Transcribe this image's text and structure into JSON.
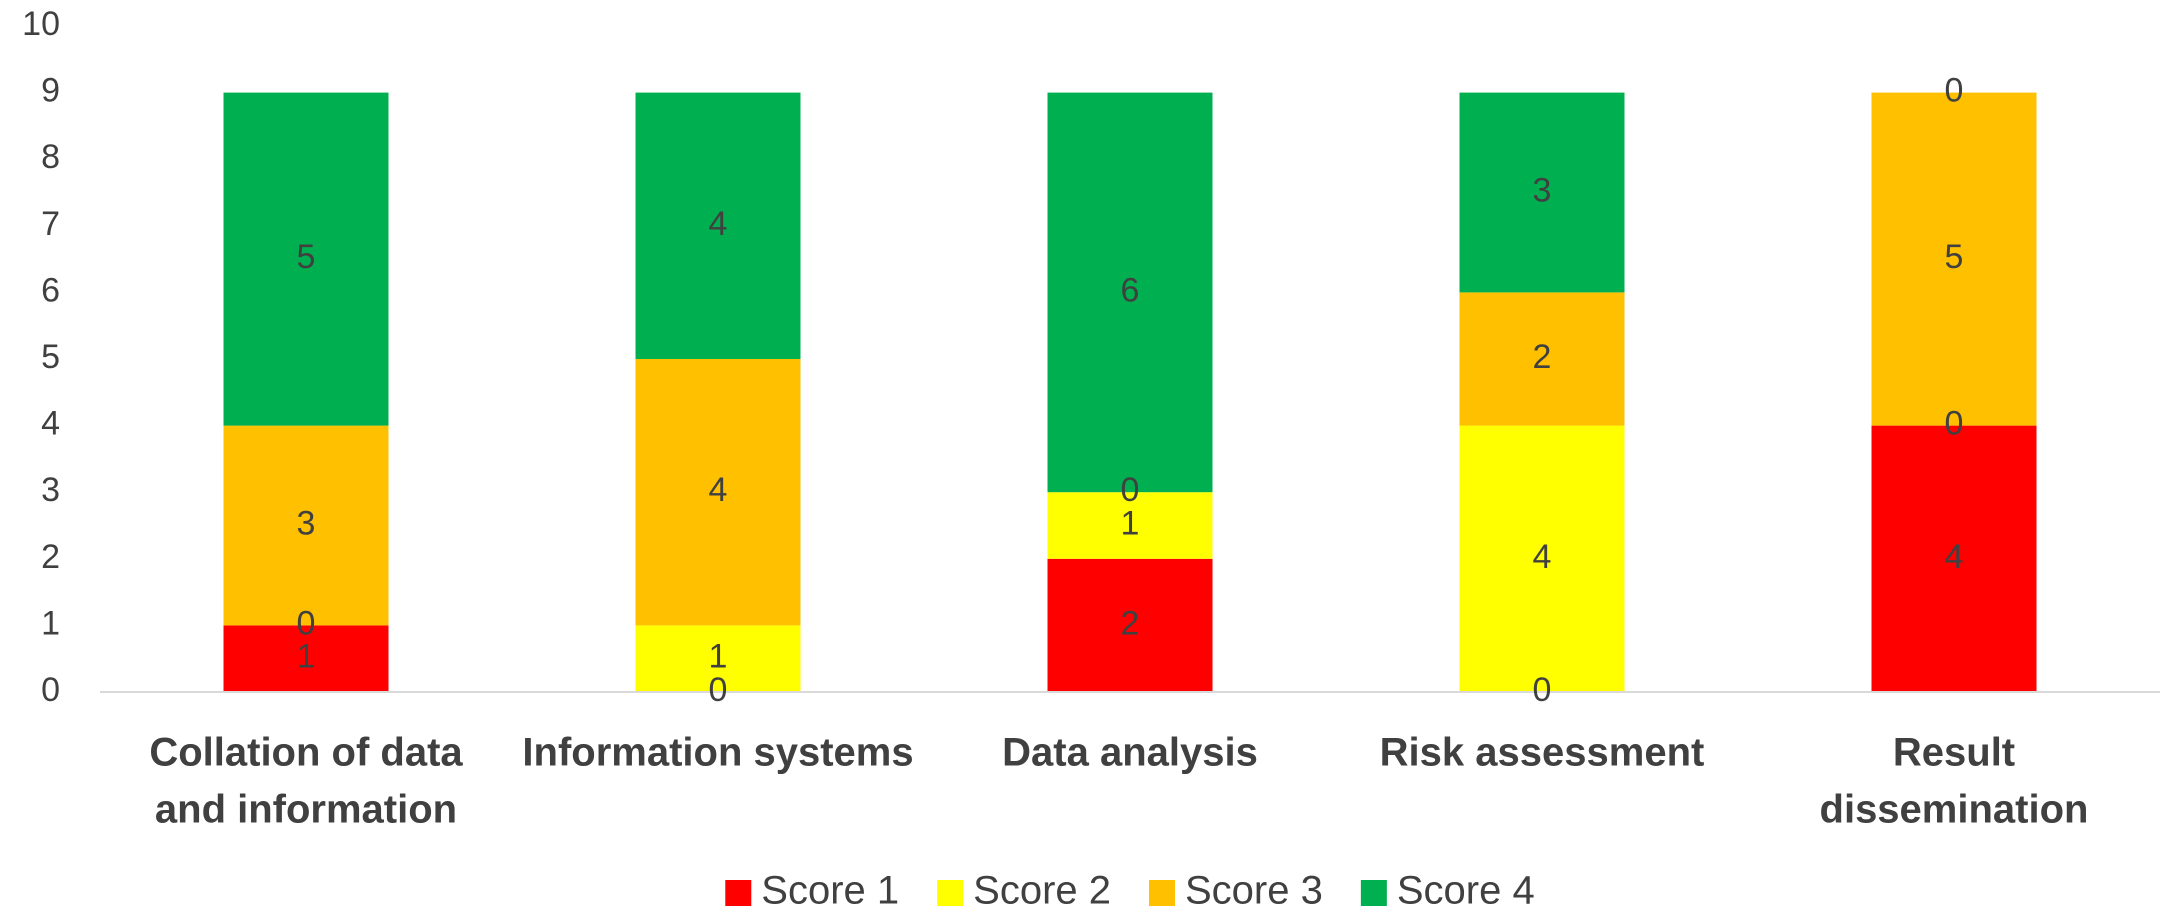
{
  "chart_data": {
    "type": "bar",
    "stacked": true,
    "categories": [
      [
        "Collation of data",
        "and information"
      ],
      [
        "Information systems"
      ],
      [
        "Data analysis"
      ],
      [
        "Risk assessment"
      ],
      [
        "Result",
        "dissemination"
      ]
    ],
    "series": [
      {
        "name": "Score 1",
        "color": "#FF0000",
        "values": [
          1,
          0,
          2,
          0,
          4
        ]
      },
      {
        "name": "Score 2",
        "color": "#FFFF00",
        "values": [
          0,
          1,
          1,
          4,
          0
        ]
      },
      {
        "name": "Score 3",
        "color": "#FFC000",
        "values": [
          3,
          4,
          0,
          2,
          5
        ]
      },
      {
        "name": "Score 4",
        "color": "#00B050",
        "values": [
          5,
          4,
          6,
          3,
          0
        ]
      }
    ],
    "ylim": [
      0,
      10
    ],
    "yticks": [
      0,
      1,
      2,
      3,
      4,
      5,
      6,
      7,
      8,
      9,
      10
    ],
    "grid": false,
    "legend": "bottom",
    "title": "",
    "xlabel": "",
    "ylabel": ""
  }
}
